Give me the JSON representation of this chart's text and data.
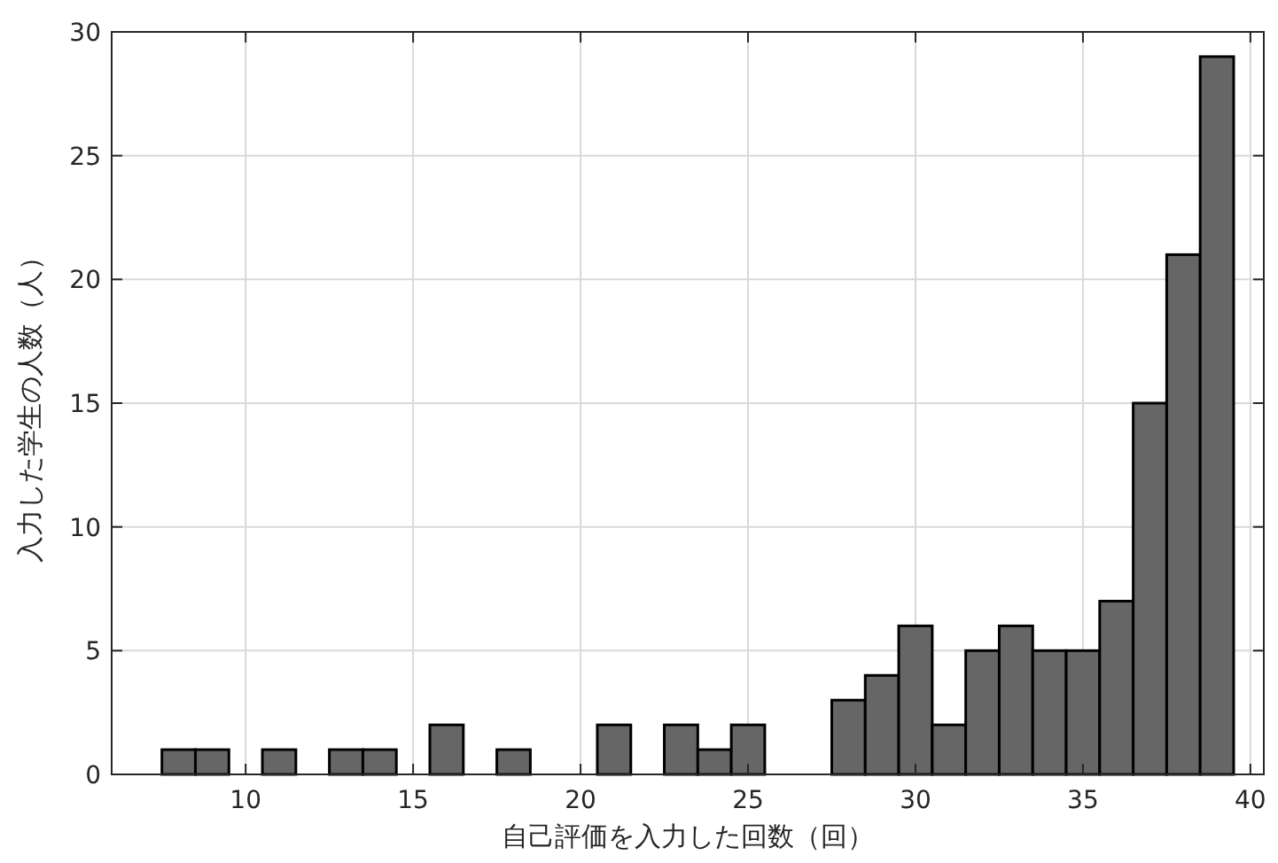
{
  "chart_data": {
    "type": "histogram",
    "xlabel": "自己評価を入力した回数（回）",
    "ylabel": "入力した学生の人数（人）",
    "bins": [
      7.5,
      8.5,
      9.5,
      10.5,
      11.5,
      12.5,
      13.5,
      14.5,
      15.5,
      16.5,
      17.5,
      18.5,
      19.5,
      20.5,
      21.5,
      22.5,
      23.5,
      24.5,
      25.5,
      26.5,
      27.5,
      28.5,
      29.5,
      30.5,
      31.5,
      32.5,
      33.5,
      34.5,
      35.5,
      36.5,
      37.5,
      38.5,
      39.5
    ],
    "values": [
      1,
      1,
      0,
      1,
      0,
      1,
      1,
      0,
      2,
      0,
      1,
      0,
      0,
      2,
      0,
      2,
      1,
      2,
      0,
      0,
      3,
      4,
      6,
      2,
      5,
      6,
      5,
      5,
      7,
      15,
      21,
      29
    ],
    "color": "#666666",
    "xlim": [
      6,
      40.4
    ],
    "ylim": [
      0,
      30
    ],
    "xticks": [
      10,
      15,
      20,
      25,
      30,
      35,
      40
    ],
    "yticks": [
      0,
      5,
      10,
      15,
      20,
      25,
      30
    ],
    "grid": true
  }
}
